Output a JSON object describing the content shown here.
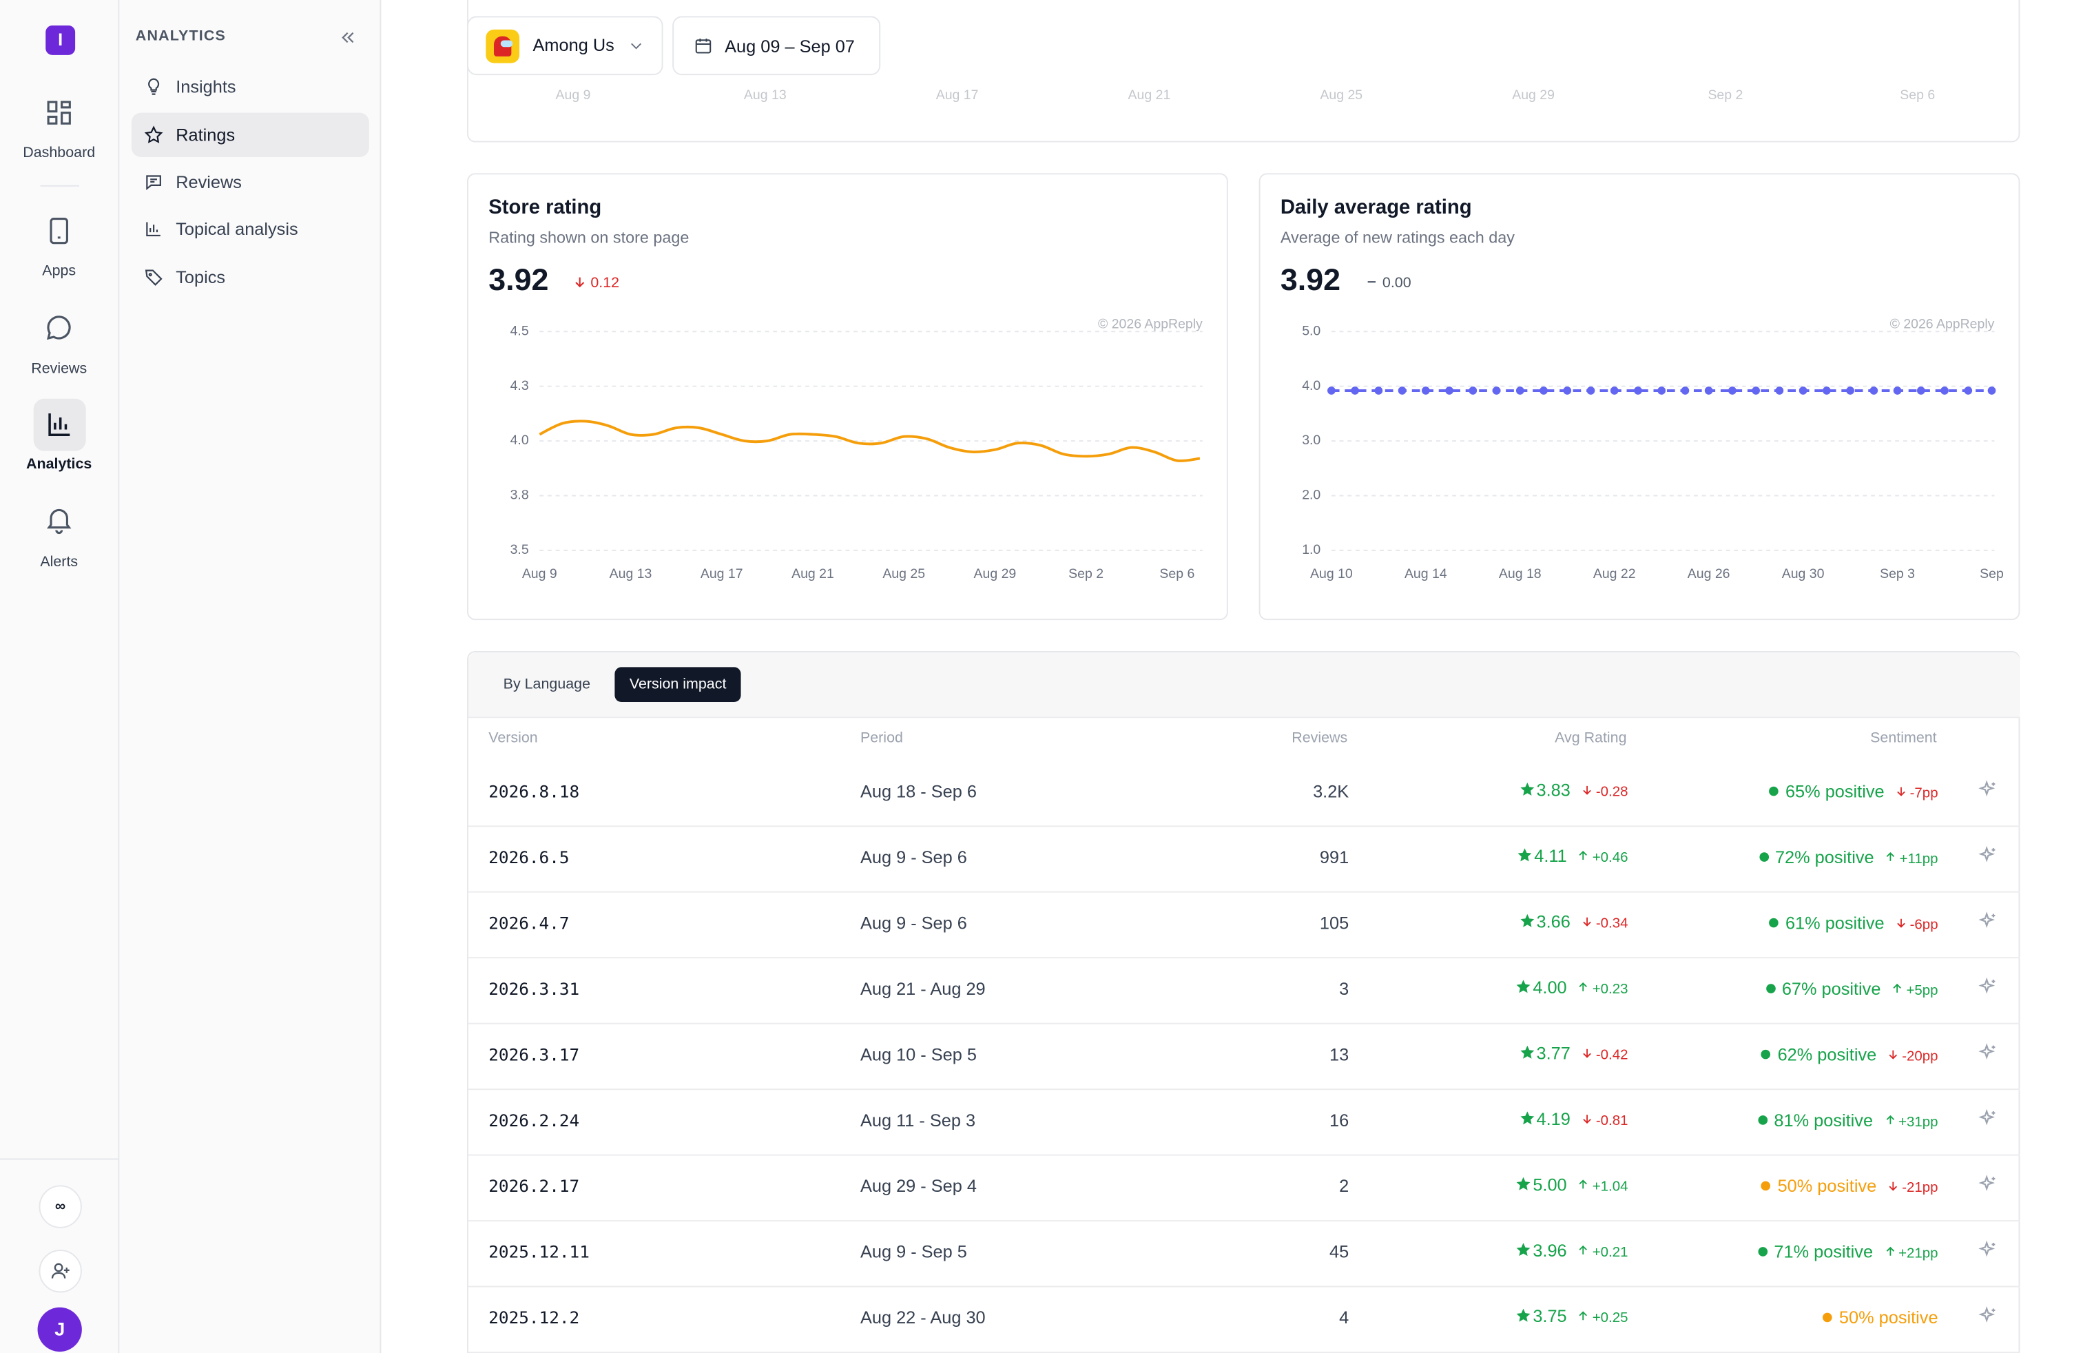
{
  "sidebar": {
    "logo": "I",
    "nav": [
      "Dashboard",
      "Apps",
      "Reviews",
      "Analytics",
      "Alerts"
    ],
    "more": "∞",
    "avatar": "J"
  },
  "subnav": {
    "title": "ANALYTICS",
    "items": [
      "Insights",
      "Ratings",
      "Reviews",
      "Topical analysis",
      "Topics"
    ]
  },
  "toolbar": {
    "app": "Among Us",
    "date_range": "Aug 09 – Sep 07"
  },
  "overview_axis": [
    "Aug 9",
    "Aug 13",
    "Aug 17",
    "Aug 21",
    "Aug 25",
    "Aug 29",
    "Sep 2",
    "Sep 6"
  ],
  "chart_data": [
    {
      "type": "line",
      "title": "Store rating",
      "subtitle": "Rating shown on store page",
      "current": "3.92",
      "change": "0.12",
      "trend": "down",
      "watermark": "© 2026 AppReply",
      "categories": [
        "Aug 9",
        null,
        null,
        null,
        "Aug 13",
        null,
        null,
        null,
        "Aug 17",
        null,
        null,
        null,
        "Aug 21",
        null,
        null,
        null,
        "Aug 25",
        null,
        null,
        null,
        "Aug 29",
        null,
        null,
        null,
        "Sep 2",
        null,
        null,
        null,
        "Sep 6",
        null
      ],
      "values": [
        4.03,
        4.08,
        4.09,
        4.07,
        4.03,
        4.03,
        4.06,
        4.06,
        4.03,
        4.0,
        4.0,
        4.03,
        4.03,
        4.02,
        3.99,
        3.99,
        4.02,
        4.01,
        3.97,
        3.95,
        3.96,
        3.99,
        3.98,
        3.94,
        3.93,
        3.94,
        3.97,
        3.95,
        3.91,
        3.92
      ],
      "color": "#f59e0b",
      "line_style": "solid",
      "markers": false,
      "smooth": true,
      "ylim": [
        3.5,
        4.5
      ],
      "yticks": [
        4.5,
        {
          "value": 4.25,
          "label": "4.3"
        },
        {
          "value": 4,
          "label": "4.0"
        },
        {
          "value": 3.75,
          "label": "3.8"
        },
        3.5
      ],
      "grid": true
    },
    {
      "type": "line",
      "title": "Daily average rating",
      "subtitle": "Average of new ratings each day",
      "current": "3.92",
      "change": "0.00",
      "trend": "flat",
      "watermark": "© 2026 AppReply",
      "categories": [
        "Aug 10",
        null,
        null,
        null,
        "Aug 14",
        null,
        null,
        null,
        "Aug 18",
        null,
        null,
        null,
        "Aug 22",
        null,
        null,
        null,
        "Aug 26",
        null,
        null,
        null,
        "Aug 30",
        null,
        null,
        null,
        "Sep 3",
        null,
        null,
        null,
        "Sep"
      ],
      "values": [
        3.92,
        3.92,
        3.92,
        3.92,
        3.92,
        3.92,
        3.92,
        3.92,
        3.92,
        3.92,
        3.92,
        3.92,
        3.92,
        3.92,
        3.92,
        3.92,
        3.92,
        3.92,
        3.92,
        3.92,
        3.92,
        3.92,
        3.92,
        3.92,
        3.92,
        3.92,
        3.92,
        3.92,
        3.92
      ],
      "color": "#6366f1",
      "line_style": "dashed",
      "markers": true,
      "smooth": false,
      "ylim": [
        1,
        5
      ],
      "yticks": [
        {
          "value": 5,
          "label": "5.0"
        },
        {
          "value": 4,
          "label": "4.0"
        },
        {
          "value": 3,
          "label": "3.0"
        },
        {
          "value": 2,
          "label": "2.0"
        },
        {
          "value": 1,
          "label": "1.0"
        }
      ],
      "grid": true
    }
  ],
  "table": {
    "tabs": [
      "By Language",
      "Version impact"
    ],
    "active_tab": 1,
    "columns": [
      "Version",
      "Period",
      "Reviews",
      "Avg Rating",
      "Sentiment"
    ],
    "rows": [
      {
        "version": "2026.8.18",
        "period": "Aug 18 - Sep 6",
        "reviews": "3.2K",
        "rating": "3.83",
        "rating_change": "-0.28",
        "sentiment": "65% positive",
        "sentiment_change": "-7pp",
        "sentiment_color": "#16a34a"
      },
      {
        "version": "2026.6.5",
        "period": "Aug 9 - Sep 6",
        "reviews": "991",
        "rating": "4.11",
        "rating_change": "+0.46",
        "sentiment": "72% positive",
        "sentiment_change": "+11pp",
        "sentiment_color": "#16a34a"
      },
      {
        "version": "2026.4.7",
        "period": "Aug 9 - Sep 6",
        "reviews": "105",
        "rating": "3.66",
        "rating_change": "-0.34",
        "sentiment": "61% positive",
        "sentiment_change": "-6pp",
        "sentiment_color": "#16a34a"
      },
      {
        "version": "2026.3.31",
        "period": "Aug 21 - Aug 29",
        "reviews": "3",
        "rating": "4.00",
        "rating_change": "+0.23",
        "sentiment": "67% positive",
        "sentiment_change": "+5pp",
        "sentiment_color": "#16a34a"
      },
      {
        "version": "2026.3.17",
        "period": "Aug 10 - Sep 5",
        "reviews": "13",
        "rating": "3.77",
        "rating_change": "-0.42",
        "sentiment": "62% positive",
        "sentiment_change": "-20pp",
        "sentiment_color": "#16a34a"
      },
      {
        "version": "2026.2.24",
        "period": "Aug 11 - Sep 3",
        "reviews": "16",
        "rating": "4.19",
        "rating_change": "-0.81",
        "sentiment": "81% positive",
        "sentiment_change": "+31pp",
        "sentiment_color": "#16a34a"
      },
      {
        "version": "2026.2.17",
        "period": "Aug 29 - Sep 4",
        "reviews": "2",
        "rating": "5.00",
        "rating_change": "+1.04",
        "sentiment": "50% positive",
        "sentiment_change": "-21pp",
        "sentiment_color": "#f59e0b"
      },
      {
        "version": "2025.12.11",
        "period": "Aug 9 - Sep 5",
        "reviews": "45",
        "rating": "3.96",
        "rating_change": "+0.21",
        "sentiment": "71% positive",
        "sentiment_change": "+21pp",
        "sentiment_color": "#16a34a"
      },
      {
        "version": "2025.12.2",
        "period": "Aug 22 - Aug 30",
        "reviews": "4",
        "rating": "3.75",
        "rating_change": "+0.25",
        "sentiment": "50% positive",
        "sentiment_color": "#f59e0b"
      }
    ]
  }
}
